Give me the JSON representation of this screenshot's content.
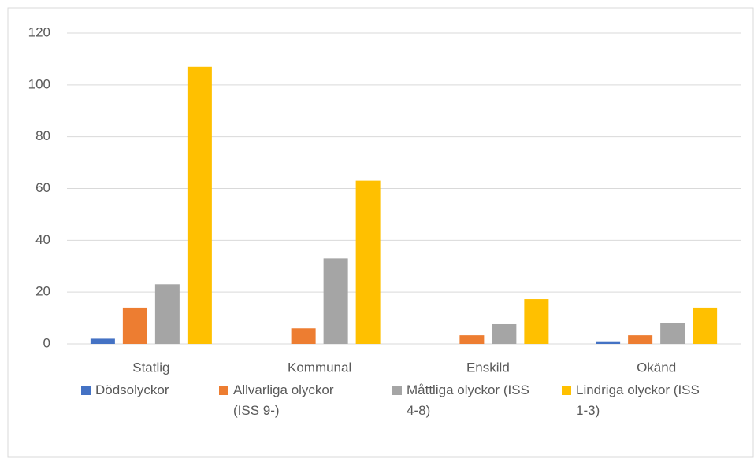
{
  "chart_data": {
    "type": "bar",
    "categories": [
      "Statlig",
      "Kommunal",
      "Enskild",
      "Okänd"
    ],
    "series": [
      {
        "name": "Dödsolyckor",
        "color": "#4472c4",
        "values": [
          2,
          0,
          0,
          1
        ]
      },
      {
        "name": "Allvarliga olyckor (ISS 9-)",
        "color": "#ed7d31",
        "values": [
          14,
          6,
          3.3,
          3.3
        ]
      },
      {
        "name": "Måttliga olyckor (ISS 4-8)",
        "color": "#a5a5a5",
        "values": [
          23,
          33,
          7.6,
          8.2
        ]
      },
      {
        "name": "Lindriga olyckor (ISS 1-3)",
        "color": "#ffc000",
        "values": [
          107,
          63,
          17.3,
          14
        ]
      }
    ],
    "ylim": [
      0,
      120
    ],
    "yticks": [
      0,
      20,
      40,
      60,
      80,
      100,
      120
    ],
    "grid": true,
    "legend": "bottom"
  }
}
